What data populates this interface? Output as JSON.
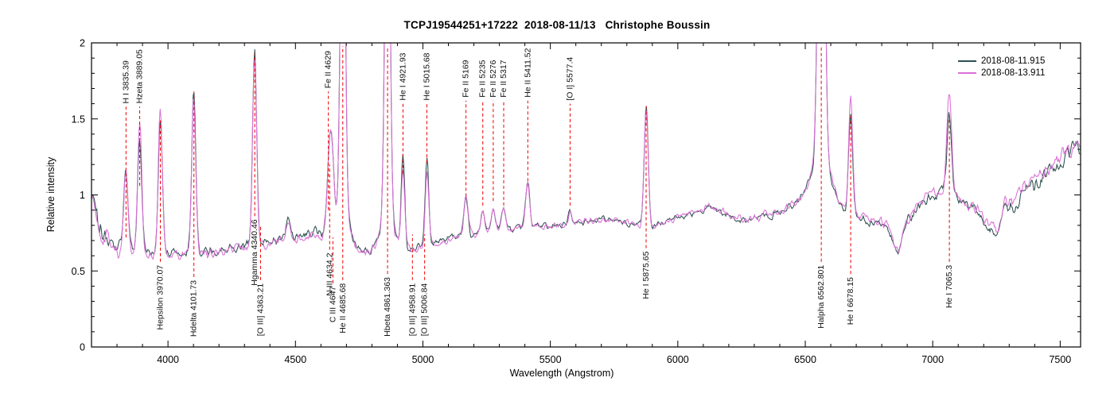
{
  "chart_data": {
    "type": "line",
    "title": "TCPJ19544251+17222  2018-08-11/13   Christophe Boussin",
    "xlabel": "Wavelength (Angstrom)",
    "ylabel": "Relative intensity",
    "xlim": [
      3700,
      7580
    ],
    "ylim": [
      0,
      2
    ],
    "x_ticks": [
      4000,
      4500,
      5000,
      5500,
      6000,
      6500,
      7000,
      7500
    ],
    "x_minor_step": 100,
    "y_ticks": [
      0,
      0.5,
      1,
      1.5,
      2
    ],
    "y_minor_step": 0.1,
    "grid": false,
    "legend_position": "top-right",
    "annotation_color": "#EE0000",
    "background": "#FFFFFF",
    "series": [
      {
        "name": "2018-08-11.915",
        "color": "#2F4F4F",
        "seed": 987654321,
        "tilt": 0,
        "line_boost": {
          "4922": 1.1,
          "5016": 1.05
        }
      },
      {
        "name": "2018-08-13.911",
        "color": "#DA70D6",
        "seed": 123456789,
        "tilt": 1e-05,
        "line_boost": {
          "3889": 1.18,
          "3970": 1.08,
          "4101": 0.95,
          "4922": 0.92,
          "5016": 0.88,
          "6678": 1.12,
          "7065": 1.3
        }
      }
    ],
    "continuum": [
      [
        3700,
        1.02
      ],
      [
        3715,
        0.92
      ],
      [
        3740,
        0.75
      ],
      [
        3780,
        0.66
      ],
      [
        3850,
        0.63
      ],
      [
        3950,
        0.62
      ],
      [
        4050,
        0.62
      ],
      [
        4150,
        0.63
      ],
      [
        4250,
        0.65
      ],
      [
        4350,
        0.67
      ],
      [
        4430,
        0.71
      ],
      [
        4500,
        0.72
      ],
      [
        4570,
        0.76
      ],
      [
        4620,
        0.73
      ],
      [
        4700,
        0.66
      ],
      [
        4760,
        0.63
      ],
      [
        4820,
        0.62
      ],
      [
        4900,
        0.63
      ],
      [
        4980,
        0.65
      ],
      [
        5060,
        0.69
      ],
      [
        5140,
        0.73
      ],
      [
        5220,
        0.75
      ],
      [
        5350,
        0.77
      ],
      [
        5450,
        0.79
      ],
      [
        5550,
        0.8
      ],
      [
        5650,
        0.83
      ],
      [
        5750,
        0.84
      ],
      [
        5830,
        0.81
      ],
      [
        5890,
        0.78
      ],
      [
        5950,
        0.82
      ],
      [
        6050,
        0.88
      ],
      [
        6120,
        0.92
      ],
      [
        6180,
        0.88
      ],
      [
        6250,
        0.83
      ],
      [
        6320,
        0.85
      ],
      [
        6400,
        0.89
      ],
      [
        6460,
        0.93
      ],
      [
        6520,
        0.9
      ],
      [
        6620,
        0.87
      ],
      [
        6720,
        0.84
      ],
      [
        6820,
        0.8
      ],
      [
        6866,
        0.6
      ],
      [
        6890,
        0.8
      ],
      [
        6940,
        0.92
      ],
      [
        7000,
        1.0
      ],
      [
        7060,
        1.02
      ],
      [
        7120,
        0.96
      ],
      [
        7170,
        0.9
      ],
      [
        7210,
        0.8
      ],
      [
        7260,
        0.74
      ],
      [
        7310,
        0.92
      ],
      [
        7360,
        1.02
      ],
      [
        7420,
        1.1
      ],
      [
        7480,
        1.18
      ],
      [
        7540,
        1.28
      ],
      [
        7580,
        1.32
      ]
    ],
    "emission_lines": [
      {
        "wl": 3835,
        "h": 0.54,
        "s": 8
      },
      {
        "wl": 3889,
        "h": 0.74,
        "s": 8
      },
      {
        "wl": 3970,
        "h": 0.88,
        "s": 8
      },
      {
        "wl": 4101,
        "h": 1.06,
        "s": 8
      },
      {
        "wl": 4340,
        "h": 1.27,
        "s": 8
      },
      {
        "wl": 4471,
        "h": 0.12,
        "s": 8
      },
      {
        "wl": 4638,
        "h": 0.7,
        "s": 11
      },
      {
        "wl": 4686,
        "h": 2.7,
        "s": 9
      },
      {
        "wl": 4686,
        "h": 0.22,
        "s": 26
      },
      {
        "wl": 4861,
        "h": 3.2,
        "s": 9
      },
      {
        "wl": 4861,
        "h": 0.22,
        "s": 28
      },
      {
        "wl": 4922,
        "h": 0.55,
        "s": 7
      },
      {
        "wl": 5016,
        "h": 0.57,
        "s": 7
      },
      {
        "wl": 5169,
        "h": 0.25,
        "s": 8
      },
      {
        "wl": 5235,
        "h": 0.13,
        "s": 8
      },
      {
        "wl": 5276,
        "h": 0.15,
        "s": 8
      },
      {
        "wl": 5317,
        "h": 0.13,
        "s": 8
      },
      {
        "wl": 5411,
        "h": 0.3,
        "s": 8
      },
      {
        "wl": 5577,
        "h": 0.1,
        "s": 6
      },
      {
        "wl": 5876,
        "h": 0.8,
        "s": 8
      },
      {
        "wl": 6563,
        "h": 3.8,
        "s": 11
      },
      {
        "wl": 6563,
        "h": 0.35,
        "s": 42
      },
      {
        "wl": 6678,
        "h": 0.68,
        "s": 8
      },
      {
        "wl": 7065,
        "h": 0.5,
        "s": 9
      },
      {
        "wl": 7281,
        "h": 0.12,
        "s": 9
      }
    ],
    "annotations": [
      {
        "label": "H I 3835.39",
        "wl": 3835.39,
        "side": "top",
        "i1": 0.72,
        "i2": 1.58
      },
      {
        "label": "Hzeta 3889.05",
        "wl": 3889.05,
        "side": "top",
        "i1": 1.06,
        "i2": 1.58
      },
      {
        "label": "Hepsilon 3970.07",
        "wl": 3970.07,
        "side": "bottom",
        "i1": 0.56,
        "i2": 1.49
      },
      {
        "label": "Hdelta 4101.73",
        "wl": 4101.73,
        "side": "bottom",
        "i1": 0.46,
        "i2": 1.68
      },
      {
        "label": "Hgamma 4340.46",
        "wl": 4340.46,
        "side": "bottom",
        "i1": 0.86,
        "i2": 1.93
      },
      {
        "label": "[O III] 4363.21",
        "wl": 4363.21,
        "side": "bottom",
        "i1": 0.44,
        "i2": 0.79
      },
      {
        "label": "Fe II 4629",
        "wl": 4629,
        "side": "top",
        "i1": 0.9,
        "i2": 1.68
      },
      {
        "label": "N III 4634.2",
        "wl": 4634.2,
        "side": "bottom",
        "i1": 0.64,
        "i2": 1.2
      },
      {
        "label": "C III 4647",
        "wl": 4647,
        "side": "bottom",
        "i1": 0.42,
        "i2": 0.72
      },
      {
        "label": "He II 4685.68",
        "wl": 4685.68,
        "side": "bottom",
        "i1": 0.44,
        "i2": 1.98
      },
      {
        "label": "Hbeta 4861.363",
        "wl": 4861.363,
        "side": "bottom",
        "i1": 0.48,
        "i2": 1.98
      },
      {
        "label": "He I 4921.93",
        "wl": 4921.93,
        "side": "top",
        "i1": 1.14,
        "i2": 1.6
      },
      {
        "label": "[O III] 4958.91",
        "wl": 4958.91,
        "side": "bottom",
        "i1": 0.44,
        "i2": 0.74
      },
      {
        "label": "[O III] 5006.84",
        "wl": 5006.84,
        "side": "bottom",
        "i1": 0.44,
        "i2": 0.74
      },
      {
        "label": "He I 5015.68",
        "wl": 5015.68,
        "side": "top",
        "i1": 1.21,
        "i2": 1.6
      },
      {
        "label": "Fe II 5169",
        "wl": 5169,
        "side": "top",
        "i1": 0.99,
        "i2": 1.62
      },
      {
        "label": "Fe II 5235",
        "wl": 5235,
        "side": "top",
        "i1": 0.93,
        "i2": 1.62
      },
      {
        "label": "Fe II 5276",
        "wl": 5276,
        "side": "top",
        "i1": 0.96,
        "i2": 1.62
      },
      {
        "label": "Fe II 5317",
        "wl": 5317,
        "side": "top",
        "i1": 0.93,
        "i2": 1.62
      },
      {
        "label": "He II 5411.52",
        "wl": 5411.52,
        "side": "top",
        "i1": 1.09,
        "i2": 1.62
      },
      {
        "label": "[O I] 5577.4",
        "wl": 5577.4,
        "side": "top",
        "i1": 0.93,
        "i2": 1.6
      },
      {
        "label": "He I 5875.65",
        "wl": 5875.65,
        "side": "bottom",
        "i1": 0.65,
        "i2": 1.6
      },
      {
        "label": "Halpha 6562.801",
        "wl": 6562.801,
        "side": "bottom",
        "i1": 0.56,
        "i2": 1.98
      },
      {
        "label": "He I 6678.15",
        "wl": 6678.15,
        "side": "bottom",
        "i1": 0.48,
        "i2": 1.52
      },
      {
        "label": "He I 7065.3",
        "wl": 7065.3,
        "side": "bottom",
        "i1": 0.56,
        "i2": 1.51
      }
    ]
  }
}
